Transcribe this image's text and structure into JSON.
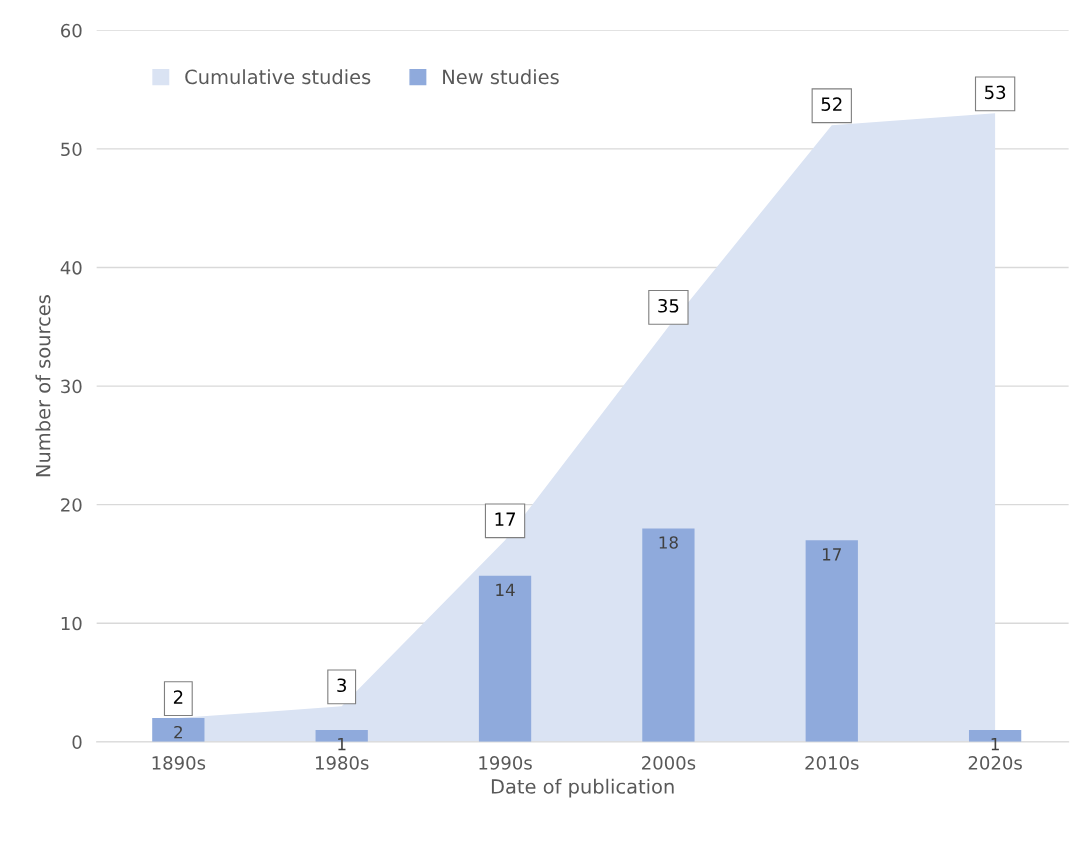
{
  "chart_data": {
    "type": "bar",
    "xlabel": "Date of publication",
    "ylabel": "Number of sources",
    "categories": [
      "1890s",
      "1980s",
      "1990s",
      "2000s",
      "2010s",
      "2020s"
    ],
    "series": [
      {
        "name": "Cumulative studies",
        "type": "area",
        "color": "#dae3f3",
        "values": [
          2,
          3,
          17,
          35,
          52,
          53
        ]
      },
      {
        "name": "New studies",
        "color": "#8faadc",
        "values": [
          2,
          1,
          14,
          18,
          17,
          1
        ]
      }
    ],
    "ylim": [
      0,
      60
    ],
    "yticks": [
      0,
      10,
      20,
      30,
      40,
      50,
      60
    ],
    "grid": "y",
    "legend": "top left",
    "data_labels": true
  }
}
